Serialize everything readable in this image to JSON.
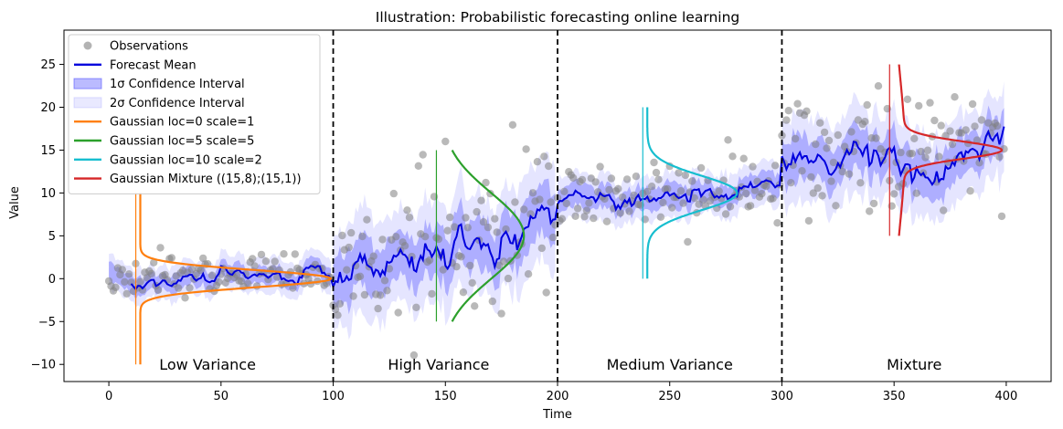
{
  "chart_data": {
    "type": "line",
    "title": "Illustration: Probabilistic forecasting online learning",
    "xlabel": "Time",
    "ylabel": "Value",
    "xlim": [
      -20,
      420
    ],
    "ylim": [
      -12,
      29
    ],
    "xticks": [
      0,
      50,
      100,
      150,
      200,
      250,
      300,
      350,
      400
    ],
    "yticks": [
      -10,
      -5,
      0,
      5,
      10,
      15,
      20,
      25
    ],
    "grid": false,
    "legend_position": "top-left",
    "colors": {
      "observations": "#808080",
      "mean": "#0000dd",
      "band1": "#5555ff",
      "band2": "#9999ff",
      "gauss0": "#ff7f0e",
      "gauss5": "#2ca02c",
      "gauss10": "#17becf",
      "mixture": "#d62728",
      "divider": "#000000"
    },
    "dividers": [
      100,
      200,
      300
    ],
    "region_labels": [
      {
        "text": "Low Variance",
        "x": 44,
        "y": -10
      },
      {
        "text": "High Variance",
        "x": 147,
        "y": -10
      },
      {
        "text": "Medium Variance",
        "x": 250,
        "y": -10
      },
      {
        "text": "Mixture",
        "x": 359,
        "y": -10
      }
    ],
    "segments": [
      {
        "start": 0,
        "end": 100,
        "mean_start": 0,
        "mean_end": 0.5,
        "noise": 1.2,
        "band_sd": 1.0
      },
      {
        "start": 100,
        "end": 200,
        "mean_start": 0.5,
        "mean_end": 7.5,
        "noise": 4.2,
        "band_sd": 3.0
      },
      {
        "start": 200,
        "end": 300,
        "mean_start": 9,
        "mean_end": 10.5,
        "noise": 2.0,
        "band_sd": 1.3
      },
      {
        "start": 300,
        "end": 400,
        "mean_start": 14,
        "mean_end": 15,
        "noise": 3.5,
        "band_sd": 2.4
      }
    ],
    "gaussians": [
      {
        "name": "Gaussian loc=0 scale=1",
        "x0": 14,
        "amp": 85,
        "yspan": [
          -10,
          10
        ],
        "locs": [
          0
        ],
        "scales": [
          1
        ],
        "weights": [
          1
        ]
      },
      {
        "name": "Gaussian loc=5 scale=5",
        "x0": 148,
        "amp": 37,
        "yspan": [
          -5,
          15
        ],
        "locs": [
          5
        ],
        "scales": [
          5
        ],
        "weights": [
          1
        ]
      },
      {
        "name": "Gaussian loc=10 scale=2",
        "x0": 240,
        "amp": 40,
        "yspan": [
          0,
          20
        ],
        "locs": [
          10
        ],
        "scales": [
          2
        ],
        "weights": [
          1
        ]
      },
      {
        "name": "Gaussian Mixture ((15,8);(15,1))",
        "x0": 350,
        "amp": 48,
        "yspan": [
          5,
          25
        ],
        "locs": [
          15,
          15
        ],
        "scales": [
          8,
          1
        ],
        "weights": [
          0.1,
          0.9
        ]
      }
    ],
    "legend": [
      {
        "label": "Observations",
        "kind": "dot",
        "color": "#808080"
      },
      {
        "label": "Forecast Mean",
        "kind": "line",
        "color": "#0000dd"
      },
      {
        "label": "1σ Confidence Interval",
        "kind": "patch",
        "color": "#5555ff"
      },
      {
        "label": "2σ Confidence Interval",
        "kind": "patch2",
        "color": "#9999ff"
      },
      {
        "label": "Gaussian loc=0 scale=1",
        "kind": "line",
        "color": "#ff7f0e"
      },
      {
        "label": "Gaussian loc=5 scale=5",
        "kind": "line",
        "color": "#2ca02c"
      },
      {
        "label": "Gaussian loc=10 scale=2",
        "kind": "line",
        "color": "#17becf"
      },
      {
        "label": "Gaussian Mixture ((15,8);(15,1))",
        "kind": "line",
        "color": "#d62728"
      }
    ]
  }
}
